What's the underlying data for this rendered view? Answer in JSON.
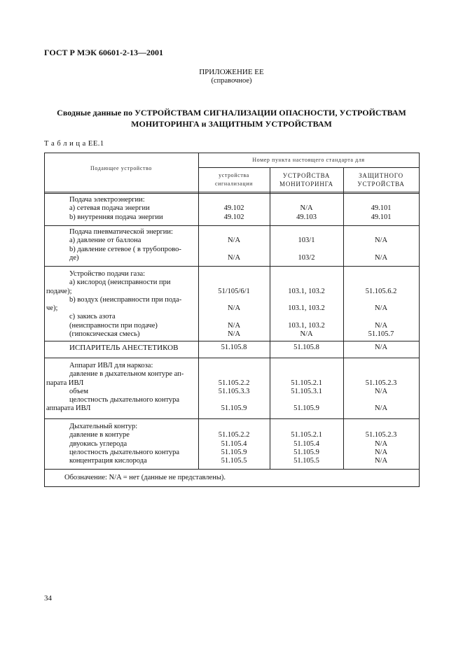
{
  "header": {
    "doc_code": "ГОСТ Р МЭК 60601-2-13—2001"
  },
  "appendix": {
    "title": "ПРИЛОЖЕНИЕ ЕЕ",
    "subtitle": "(справочное)"
  },
  "heading": {
    "line1": "Сводные данные по УСТРОЙСТВАМ СИГНАЛИЗАЦИИ ОПАСНОСТИ, УСТРОЙСТВАМ",
    "line2": "МОНИТОРИНГА и ЗАЩИТНЫМ УСТРОЙСТВАМ"
  },
  "table": {
    "caption": "Т а б л и ц а ЕЕ.1",
    "col0_header": "Подающее устройство",
    "group_header": "Номер пункта настоящего стандарта для",
    "col_headers": [
      [
        "устройства",
        "сигнализации"
      ],
      [
        "УСТРОЙСТВА",
        "МОНИТОРИНГА"
      ],
      [
        "ЗАЩИТНОГО",
        "УСТРОЙСТВА"
      ]
    ],
    "rows": [
      {
        "label": [
          {
            "text": "Подача электроэнергии:",
            "indent": true
          },
          {
            "text": "а) сетевая подача энергии",
            "indent": true
          },
          {
            "text": "b) внутренняя подача энергии",
            "indent": true
          }
        ],
        "values": [
          [
            "",
            "49.102",
            "49.102"
          ],
          [
            "",
            "N/A",
            "49.103"
          ],
          [
            "",
            "49.101",
            "49.101"
          ]
        ]
      },
      {
        "label": [
          {
            "text": "Подача пневматической энергии:",
            "indent": true
          },
          {
            "text": "а) давление от баллона",
            "indent": true
          },
          {
            "text": "b) давление сетевое ( в трубопрово-",
            "indent": true
          },
          {
            "text": "   де)",
            "indent": true
          }
        ],
        "values": [
          [
            "",
            "N/A",
            "",
            "N/A"
          ],
          [
            "",
            "103/1",
            "",
            "103/2"
          ],
          [
            "",
            "N/A",
            "",
            "N/A"
          ]
        ]
      },
      {
        "label": [
          {
            "text": "Устройство подачи газа:",
            "indent": true
          },
          {
            "text": "а) кислород (неисправности при",
            "indent": true
          },
          {
            "text": "подаче);",
            "indent": false
          },
          {
            "text": "b) воздух (неисправности при пода-",
            "indent": true
          },
          {
            "text": "че);",
            "indent": false
          },
          {
            "text": "с) закись азота",
            "indent": true
          },
          {
            "text": "(неисправности при подаче)",
            "indent": true
          },
          {
            "text": "(гипоксическая смесь)",
            "indent": true
          }
        ],
        "values": [
          [
            "",
            "",
            "51/105/6/1",
            "",
            "N/A",
            "",
            "N/A",
            "N/A"
          ],
          [
            "",
            "",
            "103.1, 103.2",
            "",
            "103.1, 103.2",
            "",
            "103.1, 103.2",
            "N/A"
          ],
          [
            "",
            "",
            "51.105.6.2",
            "",
            "N/A",
            "",
            "N/A",
            "51.105.7"
          ]
        ]
      },
      {
        "label": [
          {
            "text": "ИСПАРИТЕЛЬ АНЕСТЕТИКОВ",
            "indent": true
          }
        ],
        "values": [
          [
            "51.105.8"
          ],
          [
            "51.105.8"
          ],
          [
            "N/A"
          ]
        ]
      },
      {
        "label": [
          {
            "text": "Аппарат ИВЛ для наркоза:",
            "indent": true
          },
          {
            "text": "давление в дыхательном контуре ап-",
            "indent": true
          },
          {
            "text": "парата ИВЛ",
            "indent": false
          },
          {
            "text": "объем",
            "indent": true
          },
          {
            "text": "целостность дыхательного контура",
            "indent": true
          },
          {
            "text": "аппарата ИВЛ",
            "indent": false
          }
        ],
        "values": [
          [
            "",
            "",
            "51.105.2.2",
            "51.105.3.3",
            "",
            "51.105.9"
          ],
          [
            "",
            "",
            "51.105.2.1",
            "51.105.3.1",
            "",
            "51.105.9"
          ],
          [
            "",
            "",
            "51.105.2.3",
            "N/A",
            "",
            "N/A"
          ]
        ]
      },
      {
        "label": [
          {
            "text": "Дыхательный контур:",
            "indent": true
          },
          {
            "text": "давление в контуре",
            "indent": true
          },
          {
            "text": "двуокись углерода",
            "indent": true
          },
          {
            "text": "целостность дыхательного контура",
            "indent": true
          },
          {
            "text": "концентрация кислорода",
            "indent": true
          }
        ],
        "values": [
          [
            "",
            "51.105.2.2",
            "51.105.4",
            "51.105.9",
            "51.105.5"
          ],
          [
            "",
            "51.105.2.1",
            "51.105.4",
            "51.105.9",
            "51.105.5"
          ],
          [
            "",
            "51.105.2.3",
            "N/A",
            "N/A",
            "N/A"
          ]
        ]
      }
    ],
    "note": "Обозначение: N/A = нет (данные не представлены)."
  },
  "page_number": "34"
}
